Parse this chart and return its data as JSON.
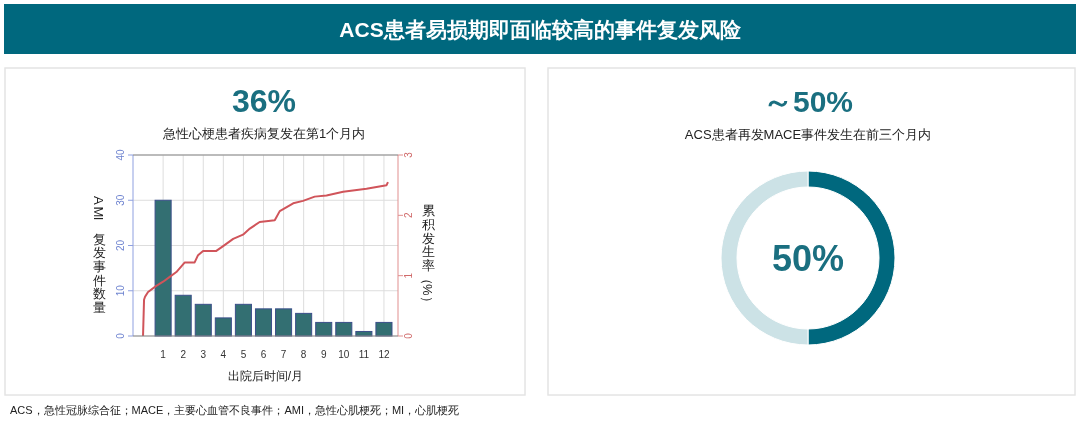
{
  "chart_data": [
    {
      "type": "bar",
      "title": "36%",
      "subtitle": "急性心梗患者疾病复发在第1个月内",
      "xlabel": "出院后时间/月",
      "ylabel": "AMI 复发事件数量",
      "y2label": "累积发生率（%）",
      "annotations": [
        "ACS患者易损期即面临较高的事件复发风险",
        "ACS，急性冠脉综合征；MACE，主要心血管不良事件；AMI，急性心肌梗死；MI，心肌梗死"
      ],
      "x": [
        1,
        2,
        3,
        4,
        5,
        6,
        7,
        8,
        9,
        10,
        11,
        12
      ],
      "xlim": [
        -0.5,
        12.7
      ],
      "xticks": [
        1,
        2,
        3,
        4,
        5,
        6,
        7,
        8,
        9,
        10,
        11,
        12
      ],
      "ylim": [
        0,
        40
      ],
      "yticks": [
        0,
        10,
        20,
        30,
        40
      ],
      "y2lim": [
        0,
        3
      ],
      "y2ticks": [
        0,
        1,
        2,
        3
      ],
      "grid": true,
      "series": [
        {
          "type": "bar",
          "color": "#336f72",
          "values": [
            30,
            9,
            7,
            4,
            7,
            6,
            6,
            5,
            3,
            3,
            1,
            3
          ]
        },
        {
          "type": "line",
          "axis": "y2",
          "color": "#d0545a",
          "marker": "none",
          "x": [
            0,
            0.05,
            0.1,
            0.25,
            0.66,
            1.0,
            1.33,
            1.66,
            2.08,
            2.57,
            2.74,
            2.99,
            3.65,
            3.99,
            4.49,
            4.98,
            5.32,
            5.81,
            6.56,
            6.81,
            7.48,
            7.97,
            8.55,
            9.14,
            9.97,
            11.13,
            12.13,
            12.2
          ],
          "values": [
            0,
            0.6,
            0.65,
            0.73,
            0.83,
            0.9,
            0.98,
            1.06,
            1.22,
            1.22,
            1.34,
            1.41,
            1.41,
            1.49,
            1.61,
            1.68,
            1.78,
            1.89,
            1.92,
            2.07,
            2.2,
            2.24,
            2.31,
            2.33,
            2.39,
            2.44,
            2.5,
            2.55
          ]
        }
      ]
    },
    {
      "type": "donut",
      "title": "～50%",
      "subtitle": "ACS患者再发MACE事件发生在前三个月内",
      "categories": [
        null,
        null
      ],
      "values": [
        50,
        50
      ],
      "colors": [
        "#00687e",
        "#cce2e6"
      ],
      "annotations": [
        "50%"
      ]
    }
  ]
}
